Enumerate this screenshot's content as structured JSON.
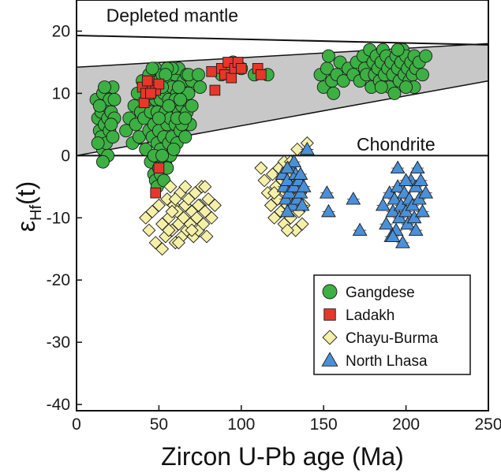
{
  "chart_data": {
    "type": "scatter",
    "xlabel": "Zircon U-Pb age (Ma)",
    "ylabel_main": "ε",
    "ylabel_sub": "Hf",
    "ylabel_tail": "(t)",
    "xlim": [
      0,
      250
    ],
    "ylim": [
      -41,
      25
    ],
    "x_ticks": [
      0,
      50,
      100,
      150,
      200,
      250
    ],
    "y_ticks": [
      20,
      10,
      0,
      -10,
      -20,
      -30,
      -40
    ],
    "grid": false,
    "legend_position": "bottom-right",
    "annotations": [
      {
        "text": "Depleted mantle",
        "x": 18,
        "y": 21.5
      },
      {
        "text": "Chondrite",
        "x": 170,
        "y": 0.8
      }
    ],
    "reference_lines": [
      {
        "name": "depleted-mantle-line",
        "x": [
          0,
          250
        ],
        "y": [
          19.3,
          17.8
        ]
      },
      {
        "name": "chondrite-line",
        "x": [
          0,
          250
        ],
        "y": [
          0,
          0
        ]
      }
    ],
    "band": {
      "x": [
        0,
        250
      ],
      "upper": [
        14.2,
        18.0
      ],
      "lower": [
        0,
        12.0
      ]
    },
    "series": [
      {
        "name": "Gangdese",
        "marker": "circle",
        "color": "#3cb043",
        "points": [
          [
            12,
            9
          ],
          [
            13,
            6
          ],
          [
            14,
            4
          ],
          [
            15,
            7
          ],
          [
            15,
            3
          ],
          [
            16,
            10
          ],
          [
            16,
            1
          ],
          [
            17,
            5
          ],
          [
            18,
            8
          ],
          [
            18,
            2
          ],
          [
            19,
            6
          ],
          [
            20,
            4
          ],
          [
            20,
            9
          ],
          [
            21,
            7
          ],
          [
            22,
            3
          ],
          [
            22,
            11
          ],
          [
            23,
            6
          ],
          [
            14,
            8
          ],
          [
            17,
            11
          ],
          [
            19,
            0
          ],
          [
            21,
            5
          ],
          [
            13,
            2
          ],
          [
            23,
            9
          ],
          [
            16,
            -1
          ],
          [
            30,
            4
          ],
          [
            32,
            6
          ],
          [
            34,
            2
          ],
          [
            35,
            8
          ],
          [
            36,
            5
          ],
          [
            37,
            10
          ],
          [
            38,
            3
          ],
          [
            39,
            7
          ],
          [
            40,
            12
          ],
          [
            41,
            6
          ],
          [
            42,
            1
          ],
          [
            43,
            9
          ],
          [
            44,
            4
          ],
          [
            44,
            13
          ],
          [
            45,
            7
          ],
          [
            45,
            -1
          ],
          [
            46,
            11
          ],
          [
            46,
            3
          ],
          [
            47,
            5
          ],
          [
            47,
            -3
          ],
          [
            48,
            9
          ],
          [
            48,
            14
          ],
          [
            49,
            2
          ],
          [
            49,
            7
          ],
          [
            50,
            12
          ],
          [
            50,
            4
          ],
          [
            50,
            -2
          ],
          [
            51,
            9
          ],
          [
            51,
            1
          ],
          [
            52,
            6
          ],
          [
            52,
            13
          ],
          [
            53,
            3
          ],
          [
            53,
            10
          ],
          [
            54,
            7
          ],
          [
            54,
            -1
          ],
          [
            55,
            12
          ],
          [
            55,
            5
          ],
          [
            56,
            2
          ],
          [
            56,
            9
          ],
          [
            57,
            14
          ],
          [
            57,
            6
          ],
          [
            58,
            11
          ],
          [
            58,
            3
          ],
          [
            59,
            8
          ],
          [
            60,
            13
          ],
          [
            60,
            5
          ],
          [
            61,
            10
          ],
          [
            61,
            2
          ],
          [
            62,
            7
          ],
          [
            62,
            14
          ],
          [
            63,
            4
          ],
          [
            63,
            11
          ],
          [
            64,
            8
          ],
          [
            65,
            12
          ],
          [
            65,
            6
          ],
          [
            66,
            9
          ],
          [
            66,
            3
          ],
          [
            67,
            13
          ],
          [
            67,
            7
          ],
          [
            68,
            10
          ],
          [
            69,
            5
          ],
          [
            70,
            12
          ],
          [
            45,
            10
          ],
          [
            46,
            14
          ],
          [
            48,
            -4
          ],
          [
            47,
            0
          ],
          [
            49,
            -5
          ],
          [
            51,
            -3
          ],
          [
            53,
            -4
          ],
          [
            55,
            -2
          ],
          [
            57,
            0
          ],
          [
            59,
            1
          ],
          [
            58,
            14
          ],
          [
            60,
            9
          ],
          [
            62,
            11
          ],
          [
            64,
            5
          ],
          [
            55,
            14
          ],
          [
            52,
            11
          ],
          [
            54,
            13
          ],
          [
            56,
            8
          ],
          [
            61,
            6
          ],
          [
            63,
            9
          ],
          [
            66,
            6
          ],
          [
            68,
            13
          ],
          [
            70,
            8
          ],
          [
            74,
            13
          ],
          [
            75,
            11
          ],
          [
            52,
            0
          ],
          [
            50,
            6
          ],
          [
            88,
            13
          ],
          [
            92,
            14
          ],
          [
            95,
            15
          ],
          [
            100,
            14
          ],
          [
            108,
            13
          ],
          [
            116,
            13
          ],
          [
            148,
            13
          ],
          [
            150,
            11
          ],
          [
            152,
            14
          ],
          [
            153,
            16
          ],
          [
            155,
            12
          ],
          [
            156,
            10
          ],
          [
            158,
            13
          ],
          [
            160,
            15
          ],
          [
            162,
            12
          ],
          [
            165,
            14
          ],
          [
            168,
            13
          ],
          [
            170,
            15
          ],
          [
            172,
            12
          ],
          [
            174,
            16
          ],
          [
            175,
            14
          ],
          [
            176,
            13
          ],
          [
            178,
            17
          ],
          [
            179,
            11
          ],
          [
            180,
            15
          ],
          [
            181,
            13
          ],
          [
            182,
            16
          ],
          [
            183,
            14
          ],
          [
            184,
            12
          ],
          [
            185,
            15
          ],
          [
            186,
            17
          ],
          [
            187,
            13
          ],
          [
            188,
            16
          ],
          [
            189,
            14
          ],
          [
            190,
            11
          ],
          [
            191,
            15
          ],
          [
            192,
            13
          ],
          [
            193,
            10
          ],
          [
            194,
            16
          ],
          [
            195,
            14
          ],
          [
            196,
            12
          ],
          [
            197,
            15
          ],
          [
            198,
            17
          ],
          [
            199,
            13
          ],
          [
            200,
            16
          ],
          [
            201,
            14
          ],
          [
            202,
            12
          ],
          [
            203,
            15
          ],
          [
            204,
            13
          ],
          [
            205,
            16
          ],
          [
            206,
            14
          ],
          [
            208,
            15
          ],
          [
            210,
            13
          ],
          [
            212,
            16
          ],
          [
            185,
            11
          ],
          [
            195,
            17
          ],
          [
            205,
            11
          ],
          [
            200,
            11
          ]
        ]
      },
      {
        "name": "Ladakh",
        "marker": "square",
        "color": "#e8372a",
        "points": [
          [
            40,
            11
          ],
          [
            41,
            8.5
          ],
          [
            42,
            10
          ],
          [
            44,
            12
          ],
          [
            46,
            11
          ],
          [
            48,
            10.5
          ],
          [
            50,
            11.5
          ],
          [
            50,
            -2
          ],
          [
            48,
            -6
          ],
          [
            45,
            10
          ],
          [
            43,
            12
          ],
          [
            82,
            13.5
          ],
          [
            84,
            10.5
          ],
          [
            88,
            14
          ],
          [
            90,
            13
          ],
          [
            92,
            15
          ],
          [
            94,
            12.5
          ],
          [
            96,
            14
          ],
          [
            98,
            15
          ],
          [
            100,
            14
          ],
          [
            110,
            14
          ],
          [
            112,
            13
          ]
        ]
      },
      {
        "name": "Chayu-Burma",
        "marker": "diamond",
        "color": "#f5f0a8",
        "points": [
          [
            42,
            -10
          ],
          [
            44,
            -12
          ],
          [
            46,
            -9
          ],
          [
            48,
            -14
          ],
          [
            50,
            -8
          ],
          [
            52,
            -11
          ],
          [
            54,
            -13
          ],
          [
            55,
            -7
          ],
          [
            56,
            -10
          ],
          [
            57,
            -5
          ],
          [
            58,
            -12
          ],
          [
            59,
            -8
          ],
          [
            60,
            -14
          ],
          [
            61,
            -9
          ],
          [
            62,
            -11
          ],
          [
            63,
            -6
          ],
          [
            64,
            -13
          ],
          [
            65,
            -10
          ],
          [
            66,
            -8
          ],
          [
            67,
            -12
          ],
          [
            68,
            -7
          ],
          [
            69,
            -11
          ],
          [
            70,
            -9
          ],
          [
            71,
            -13
          ],
          [
            72,
            -6
          ],
          [
            73,
            -10
          ],
          [
            74,
            -12
          ],
          [
            75,
            -8
          ],
          [
            76,
            -5
          ],
          [
            77,
            -11
          ],
          [
            78,
            -9
          ],
          [
            79,
            -13
          ],
          [
            80,
            -7
          ],
          [
            82,
            -10
          ],
          [
            84,
            -8
          ],
          [
            52,
            -15
          ],
          [
            56,
            -12
          ],
          [
            60,
            -7
          ],
          [
            66,
            -5
          ],
          [
            70,
            -12
          ],
          [
            74,
            -8
          ],
          [
            78,
            -5
          ],
          [
            58,
            -9
          ],
          [
            62,
            -14
          ],
          [
            112,
            -2
          ],
          [
            114,
            -4
          ],
          [
            116,
            -6
          ],
          [
            118,
            -8
          ],
          [
            119,
            -3
          ],
          [
            120,
            -10
          ],
          [
            121,
            -5
          ],
          [
            122,
            -7
          ],
          [
            123,
            -2
          ],
          [
            124,
            -9
          ],
          [
            125,
            -4
          ],
          [
            126,
            -11
          ],
          [
            127,
            -6
          ],
          [
            128,
            -8
          ],
          [
            129,
            -3
          ],
          [
            130,
            -10
          ],
          [
            131,
            -5
          ],
          [
            132,
            -7
          ],
          [
            133,
            -12
          ],
          [
            134,
            -4
          ],
          [
            135,
            -9
          ],
          [
            136,
            -6
          ],
          [
            137,
            -11
          ],
          [
            138,
            -8
          ],
          [
            140,
            2
          ],
          [
            126,
            -1
          ],
          [
            130,
            -1
          ],
          [
            128,
            -12
          ],
          [
            120,
            -6
          ],
          [
            134,
            1
          ]
        ]
      },
      {
        "name": "North Lhasa",
        "marker": "triangle",
        "color": "#4a90d9",
        "points": [
          [
            125,
            -3
          ],
          [
            126,
            -5
          ],
          [
            127,
            -7
          ],
          [
            128,
            -4
          ],
          [
            129,
            -6
          ],
          [
            130,
            -2
          ],
          [
            131,
            -8
          ],
          [
            132,
            -5
          ],
          [
            133,
            -3
          ],
          [
            134,
            -7
          ],
          [
            135,
            -4
          ],
          [
            136,
            -6
          ],
          [
            137,
            -8
          ],
          [
            138,
            -5
          ],
          [
            128,
            -9
          ],
          [
            132,
            -1
          ],
          [
            136,
            -3
          ],
          [
            140,
            1
          ],
          [
            128,
            -2
          ],
          [
            152,
            -6
          ],
          [
            153,
            -9
          ],
          [
            168,
            -7
          ],
          [
            172,
            -12
          ],
          [
            186,
            -8
          ],
          [
            188,
            -11
          ],
          [
            190,
            -6
          ],
          [
            191,
            -13
          ],
          [
            192,
            -9
          ],
          [
            193,
            -7
          ],
          [
            194,
            -12
          ],
          [
            195,
            -5
          ],
          [
            196,
            -10
          ],
          [
            197,
            -8
          ],
          [
            198,
            -14
          ],
          [
            199,
            -6
          ],
          [
            200,
            -9
          ],
          [
            201,
            -11
          ],
          [
            202,
            -7
          ],
          [
            203,
            -4
          ],
          [
            204,
            -8
          ],
          [
            205,
            -10
          ],
          [
            206,
            -5
          ],
          [
            207,
            -2
          ],
          [
            208,
            -7
          ],
          [
            209,
            -4
          ],
          [
            210,
            -9
          ],
          [
            212,
            -6
          ],
          [
            206,
            -12
          ],
          [
            200,
            -4
          ],
          [
            195,
            -2
          ],
          [
            192,
            -13
          ]
        ]
      }
    ]
  }
}
